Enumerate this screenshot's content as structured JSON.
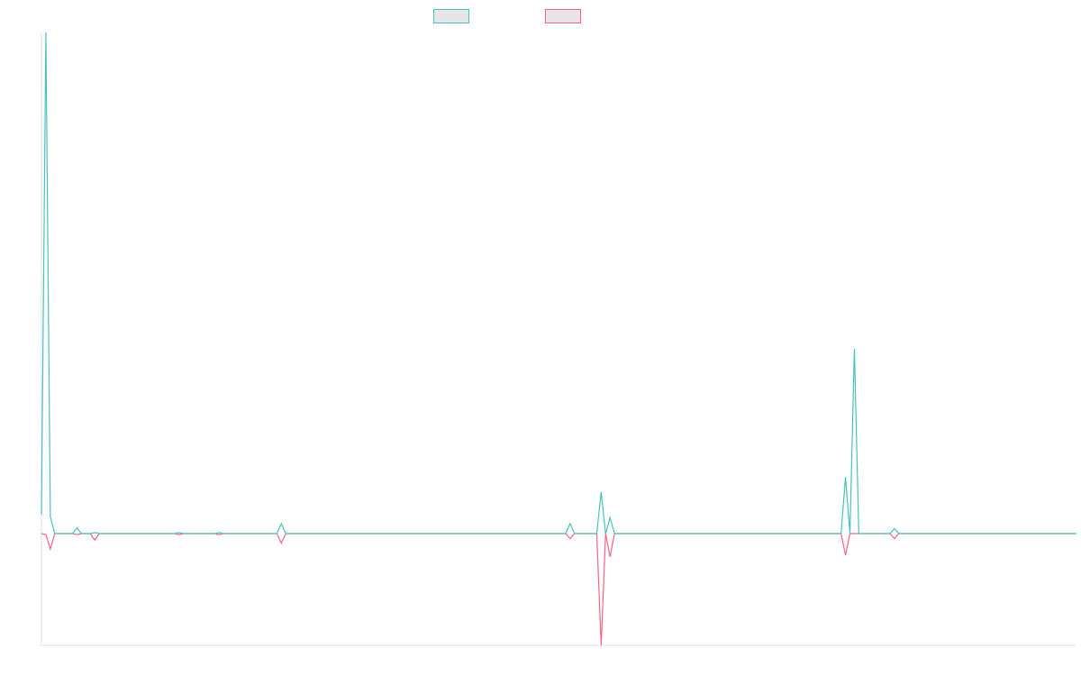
{
  "chart_data": {
    "type": "line",
    "title": "",
    "xlabel": "",
    "ylabel": "",
    "ylim": [
      -22.3,
      100
    ],
    "grid": false,
    "legend_placement": "top",
    "series": [
      {
        "color": "#4bc0c0",
        "legend_fill": "#e6e6e6",
        "values": [
          3.8,
          100,
          3.4,
          0,
          0,
          0,
          0,
          0,
          1.1,
          0,
          0,
          0,
          0.2,
          0,
          0,
          0,
          0,
          0,
          0,
          0,
          0,
          0,
          0,
          0,
          0,
          0,
          0,
          0,
          0,
          0,
          0,
          0.2,
          0,
          0,
          0,
          0,
          0,
          0,
          0,
          0,
          0.2,
          0,
          0,
          0,
          0,
          0,
          0,
          0,
          0,
          0,
          0,
          0,
          0,
          0,
          2.0,
          0,
          0,
          0,
          0,
          0,
          0,
          0,
          0,
          0,
          0,
          0,
          0,
          0,
          0,
          0,
          0,
          0,
          0,
          0,
          0,
          0,
          0,
          0,
          0,
          0,
          0,
          0,
          0,
          0,
          0,
          0,
          0,
          0,
          0,
          0,
          0,
          0,
          0,
          0,
          0,
          0,
          0,
          0,
          0,
          0,
          0,
          0,
          0,
          0,
          0,
          0,
          0,
          0,
          0,
          0,
          0,
          0,
          0,
          0,
          0,
          0,
          0,
          0,
          0,
          2.0,
          0,
          0,
          0,
          0,
          0,
          0,
          8.3,
          0,
          3.2,
          0,
          0,
          0,
          0,
          0,
          0,
          0,
          0,
          0,
          0,
          0,
          0,
          0,
          0,
          0,
          0,
          0,
          0,
          0,
          0,
          0,
          0,
          0,
          0,
          0,
          0,
          0,
          0,
          0,
          0,
          0,
          0,
          0,
          0,
          0,
          0,
          0,
          0,
          0,
          0,
          0,
          0,
          0,
          0,
          0,
          0,
          0,
          0,
          0,
          0,
          0,
          0,
          11.3,
          0,
          36.9,
          0,
          0,
          0,
          0,
          0,
          0,
          0,
          0,
          1.0,
          0,
          0,
          0,
          0,
          0,
          0,
          0,
          0,
          0,
          0,
          0,
          0,
          0,
          0,
          0,
          0,
          0,
          0,
          0,
          0,
          0,
          0,
          0,
          0,
          0,
          0,
          0,
          0,
          0,
          0,
          0,
          0,
          0,
          0,
          0,
          0,
          0,
          0,
          0,
          0,
          0
        ]
      },
      {
        "color": "#ff6384",
        "legend_fill": "#e6e6e6",
        "values": [
          0,
          -0.2,
          -3.1,
          0,
          0,
          0,
          0,
          0,
          -0.2,
          0,
          0,
          0,
          -1.3,
          0,
          0,
          0,
          0,
          0,
          0,
          0,
          0,
          0,
          0,
          0,
          0,
          0,
          0,
          0,
          0,
          0,
          0,
          -0.2,
          0,
          0,
          0,
          0,
          0,
          0,
          0,
          0,
          -0.2,
          0,
          0,
          0,
          0,
          0,
          0,
          0,
          0,
          0,
          0,
          0,
          0,
          0,
          -1.9,
          0,
          0,
          0,
          0,
          0,
          0,
          0,
          0,
          0,
          0,
          0,
          0,
          0,
          0,
          0,
          0,
          0,
          0,
          0,
          0,
          0,
          0,
          0,
          0,
          0,
          0,
          0,
          0,
          0,
          0,
          0,
          0,
          0,
          0,
          0,
          0,
          0,
          0,
          0,
          0,
          0,
          0,
          0,
          0,
          0,
          0,
          0,
          0,
          0,
          0,
          0,
          0,
          0,
          0,
          0,
          0,
          0,
          0,
          0,
          0,
          0,
          0,
          0,
          0,
          -1.0,
          0,
          0,
          0,
          0,
          0,
          0,
          -22.3,
          0,
          -4.6,
          0,
          0,
          0,
          0,
          0,
          0,
          0,
          0,
          0,
          0,
          0,
          0,
          0,
          0,
          0,
          0,
          0,
          0,
          0,
          0,
          0,
          0,
          0,
          0,
          0,
          0,
          0,
          0,
          0,
          0,
          0,
          0,
          0,
          0,
          0,
          0,
          0,
          0,
          0,
          0,
          0,
          0,
          0,
          0,
          0,
          0,
          0,
          0,
          0,
          0,
          0,
          0,
          -4.3,
          0,
          0,
          0,
          0,
          0,
          0,
          0,
          0,
          0,
          0,
          -1.0,
          0,
          0,
          0,
          0,
          0,
          0,
          0,
          0,
          0,
          0,
          0,
          0,
          0,
          0,
          0,
          0,
          0,
          0,
          0,
          0,
          0,
          0,
          0,
          0,
          0,
          0,
          0,
          0,
          0,
          0,
          0,
          0,
          0,
          0,
          0,
          0,
          0,
          0,
          0,
          0,
          0
        ]
      }
    ]
  }
}
